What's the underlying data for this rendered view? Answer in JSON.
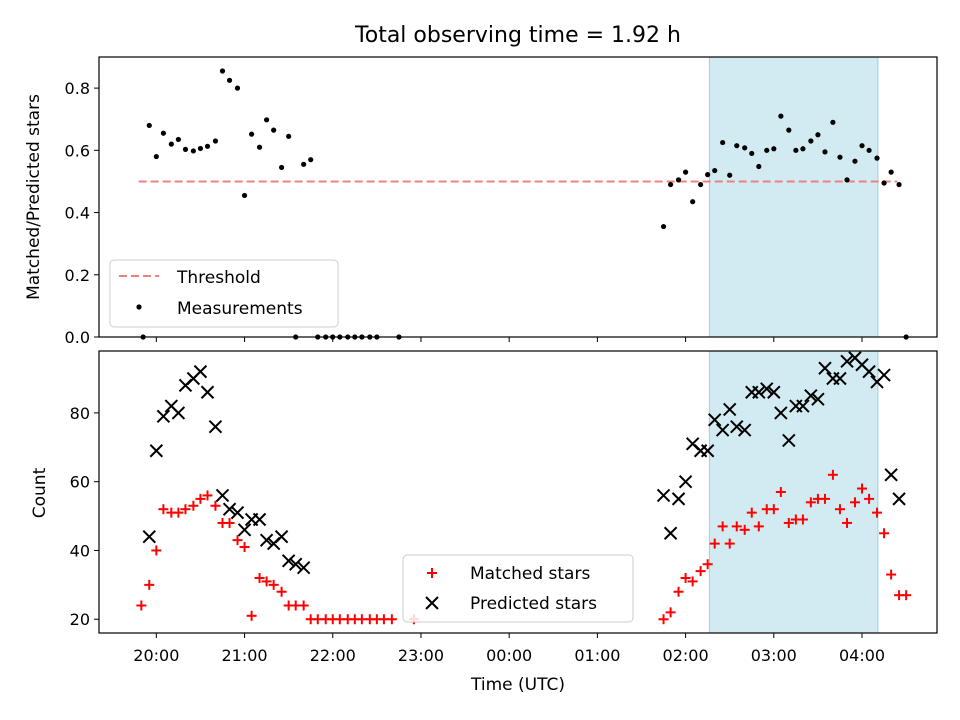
{
  "title": "Total observing time = 1.92 h",
  "colors": {
    "threshold": "#f08080",
    "measurements": "#000000",
    "matched": "#ff0000",
    "predicted": "#000000",
    "highlight": "#add8e6"
  },
  "chart_data": [
    {
      "type": "scatter",
      "panel": "top",
      "title": "Total observing time = 1.92 h",
      "xlabel": "",
      "ylabel": "Matched/Predicted stars",
      "x_unit": "hours since 00:00 UTC",
      "xlim": [
        -4.65,
        4.85
      ],
      "ylim": [
        0,
        0.9
      ],
      "yticks": [
        0.0,
        0.2,
        0.4,
        0.6,
        0.8
      ],
      "ytick_labels": [
        "0.0",
        "0.2",
        "0.4",
        "0.6",
        "0.8"
      ],
      "xticks": [
        -4,
        -3,
        -2,
        -1,
        0,
        1,
        2,
        3,
        4
      ],
      "grid": false,
      "legend_position": "lower-left",
      "highlight_span": [
        2.27,
        4.18
      ],
      "threshold": {
        "name": "Threshold",
        "y": 0.5,
        "x_range": [
          -4.2,
          4.4
        ]
      },
      "series": [
        {
          "name": "Measurements",
          "points": [
            [
              -4.15,
              0.0
            ],
            [
              -4.08,
              0.68
            ],
            [
              -4.0,
              0.58
            ],
            [
              -3.92,
              0.655
            ],
            [
              -3.83,
              0.62
            ],
            [
              -3.75,
              0.635
            ],
            [
              -3.67,
              0.603
            ],
            [
              -3.58,
              0.598
            ],
            [
              -3.5,
              0.606
            ],
            [
              -3.42,
              0.613
            ],
            [
              -3.33,
              0.63
            ],
            [
              -3.25,
              0.855
            ],
            [
              -3.17,
              0.825
            ],
            [
              -3.08,
              0.8
            ],
            [
              -3.0,
              0.455
            ],
            [
              -2.92,
              0.652
            ],
            [
              -2.83,
              0.61
            ],
            [
              -2.75,
              0.698
            ],
            [
              -2.67,
              0.665
            ],
            [
              -2.58,
              0.545
            ],
            [
              -2.5,
              0.645
            ],
            [
              -2.42,
              0.0
            ],
            [
              -2.33,
              0.555
            ],
            [
              -2.25,
              0.57
            ],
            [
              -2.17,
              0.0
            ],
            [
              -2.08,
              0.0
            ],
            [
              -2.0,
              0.0
            ],
            [
              -1.92,
              0.0
            ],
            [
              -1.83,
              0.0
            ],
            [
              -1.75,
              0.0
            ],
            [
              -1.67,
              0.0
            ],
            [
              -1.58,
              0.0
            ],
            [
              -1.5,
              0.0
            ],
            [
              -1.25,
              0.0
            ],
            [
              1.75,
              0.355
            ],
            [
              1.83,
              0.49
            ],
            [
              1.92,
              0.505
            ],
            [
              2.0,
              0.53
            ],
            [
              2.08,
              0.435
            ],
            [
              2.17,
              0.49
            ],
            [
              2.25,
              0.522
            ],
            [
              2.33,
              0.535
            ],
            [
              2.42,
              0.625
            ],
            [
              2.5,
              0.52
            ],
            [
              2.58,
              0.615
            ],
            [
              2.67,
              0.608
            ],
            [
              2.75,
              0.59
            ],
            [
              2.83,
              0.548
            ],
            [
              2.92,
              0.6
            ],
            [
              3.0,
              0.605
            ],
            [
              3.08,
              0.71
            ],
            [
              3.17,
              0.665
            ],
            [
              3.25,
              0.6
            ],
            [
              3.33,
              0.605
            ],
            [
              3.42,
              0.63
            ],
            [
              3.5,
              0.65
            ],
            [
              3.58,
              0.595
            ],
            [
              3.67,
              0.69
            ],
            [
              3.75,
              0.578
            ],
            [
              3.83,
              0.505
            ],
            [
              3.92,
              0.565
            ],
            [
              4.0,
              0.615
            ],
            [
              4.08,
              0.6
            ],
            [
              4.17,
              0.575
            ],
            [
              4.25,
              0.495
            ],
            [
              4.33,
              0.53
            ],
            [
              4.42,
              0.49
            ],
            [
              4.5,
              0.0
            ]
          ]
        }
      ]
    },
    {
      "type": "scatter",
      "panel": "bottom",
      "xlabel": "Time (UTC)",
      "ylabel": "Count",
      "x_unit": "hours since 00:00 UTC",
      "xlim": [
        -4.65,
        4.85
      ],
      "ylim": [
        16,
        98
      ],
      "yticks": [
        20,
        40,
        60,
        80
      ],
      "ytick_labels": [
        "20",
        "40",
        "60",
        "80"
      ],
      "xticks": [
        -4,
        -3,
        -2,
        -1,
        0,
        1,
        2,
        3,
        4
      ],
      "xtick_labels": [
        "20:00",
        "21:00",
        "22:00",
        "23:00",
        "00:00",
        "01:00",
        "02:00",
        "03:00",
        "04:00"
      ],
      "grid": false,
      "legend_position": "lower-center",
      "highlight_span": [
        2.27,
        4.18
      ],
      "series": [
        {
          "name": "Matched stars",
          "marker": "+",
          "points": [
            [
              -4.17,
              24
            ],
            [
              -4.08,
              30
            ],
            [
              -4.0,
              40
            ],
            [
              -3.92,
              52
            ],
            [
              -3.83,
              51
            ],
            [
              -3.75,
              51
            ],
            [
              -3.67,
              52
            ],
            [
              -3.58,
              53
            ],
            [
              -3.5,
              55
            ],
            [
              -3.42,
              56
            ],
            [
              -3.33,
              53
            ],
            [
              -3.25,
              48
            ],
            [
              -3.17,
              48
            ],
            [
              -3.08,
              43
            ],
            [
              -3.0,
              41
            ],
            [
              -2.92,
              21
            ],
            [
              -2.83,
              32
            ],
            [
              -2.75,
              31
            ],
            [
              -2.67,
              30
            ],
            [
              -2.58,
              28
            ],
            [
              -2.5,
              24
            ],
            [
              -2.42,
              24
            ],
            [
              -2.33,
              24
            ],
            [
              -2.25,
              20
            ],
            [
              -2.17,
              20
            ],
            [
              -2.08,
              20
            ],
            [
              -2.0,
              20
            ],
            [
              -1.92,
              20
            ],
            [
              -1.83,
              20
            ],
            [
              -1.75,
              20
            ],
            [
              -1.67,
              20
            ],
            [
              -1.58,
              20
            ],
            [
              -1.5,
              20
            ],
            [
              -1.42,
              20
            ],
            [
              -1.33,
              20
            ],
            [
              -1.08,
              20
            ],
            [
              1.75,
              20
            ],
            [
              1.83,
              22
            ],
            [
              1.92,
              28
            ],
            [
              2.0,
              32
            ],
            [
              2.08,
              31
            ],
            [
              2.17,
              34
            ],
            [
              2.25,
              36
            ],
            [
              2.33,
              42
            ],
            [
              2.42,
              47
            ],
            [
              2.5,
              42
            ],
            [
              2.58,
              47
            ],
            [
              2.67,
              46
            ],
            [
              2.75,
              51
            ],
            [
              2.83,
              47
            ],
            [
              2.92,
              52
            ],
            [
              3.0,
              52
            ],
            [
              3.08,
              57
            ],
            [
              3.17,
              48
            ],
            [
              3.25,
              49
            ],
            [
              3.33,
              49
            ],
            [
              3.42,
              54
            ],
            [
              3.5,
              55
            ],
            [
              3.58,
              55
            ],
            [
              3.67,
              62
            ],
            [
              3.75,
              52
            ],
            [
              3.83,
              48
            ],
            [
              3.92,
              54
            ],
            [
              4.0,
              58
            ],
            [
              4.08,
              55
            ],
            [
              4.17,
              51
            ],
            [
              4.25,
              45
            ],
            [
              4.33,
              33
            ],
            [
              4.42,
              27
            ],
            [
              4.5,
              27
            ]
          ]
        },
        {
          "name": "Predicted stars",
          "marker": "x",
          "points": [
            [
              -4.08,
              44
            ],
            [
              -4.0,
              69
            ],
            [
              -3.92,
              79
            ],
            [
              -3.83,
              82
            ],
            [
              -3.75,
              80
            ],
            [
              -3.67,
              88
            ],
            [
              -3.58,
              90
            ],
            [
              -3.5,
              92
            ],
            [
              -3.42,
              86
            ],
            [
              -3.33,
              76
            ],
            [
              -3.25,
              56
            ],
            [
              -3.17,
              52
            ],
            [
              -3.08,
              51
            ],
            [
              -3.0,
              46
            ],
            [
              -2.92,
              49
            ],
            [
              -2.83,
              49
            ],
            [
              -2.75,
              43
            ],
            [
              -2.67,
              42
            ],
            [
              -2.58,
              44
            ],
            [
              -2.5,
              37
            ],
            [
              -2.42,
              36
            ],
            [
              -2.33,
              35
            ],
            [
              1.75,
              56
            ],
            [
              1.83,
              45
            ],
            [
              1.92,
              55
            ],
            [
              2.0,
              60
            ],
            [
              2.08,
              71
            ],
            [
              2.17,
              69
            ],
            [
              2.25,
              69
            ],
            [
              2.33,
              78
            ],
            [
              2.42,
              75
            ],
            [
              2.5,
              81
            ],
            [
              2.58,
              76
            ],
            [
              2.67,
              75
            ],
            [
              2.75,
              86
            ],
            [
              2.83,
              86
            ],
            [
              2.92,
              87
            ],
            [
              3.0,
              86
            ],
            [
              3.08,
              80
            ],
            [
              3.17,
              72
            ],
            [
              3.25,
              82
            ],
            [
              3.33,
              82
            ],
            [
              3.42,
              85
            ],
            [
              3.5,
              84
            ],
            [
              3.58,
              93
            ],
            [
              3.67,
              90
            ],
            [
              3.75,
              90
            ],
            [
              3.83,
              95
            ],
            [
              3.92,
              96
            ],
            [
              4.0,
              94
            ],
            [
              4.08,
              92
            ],
            [
              4.17,
              89
            ],
            [
              4.25,
              91
            ],
            [
              4.33,
              62
            ],
            [
              4.42,
              55
            ]
          ]
        }
      ]
    }
  ],
  "legend_top": [
    "Threshold",
    "Measurements"
  ],
  "legend_bottom": [
    "Matched stars",
    "Predicted stars"
  ]
}
